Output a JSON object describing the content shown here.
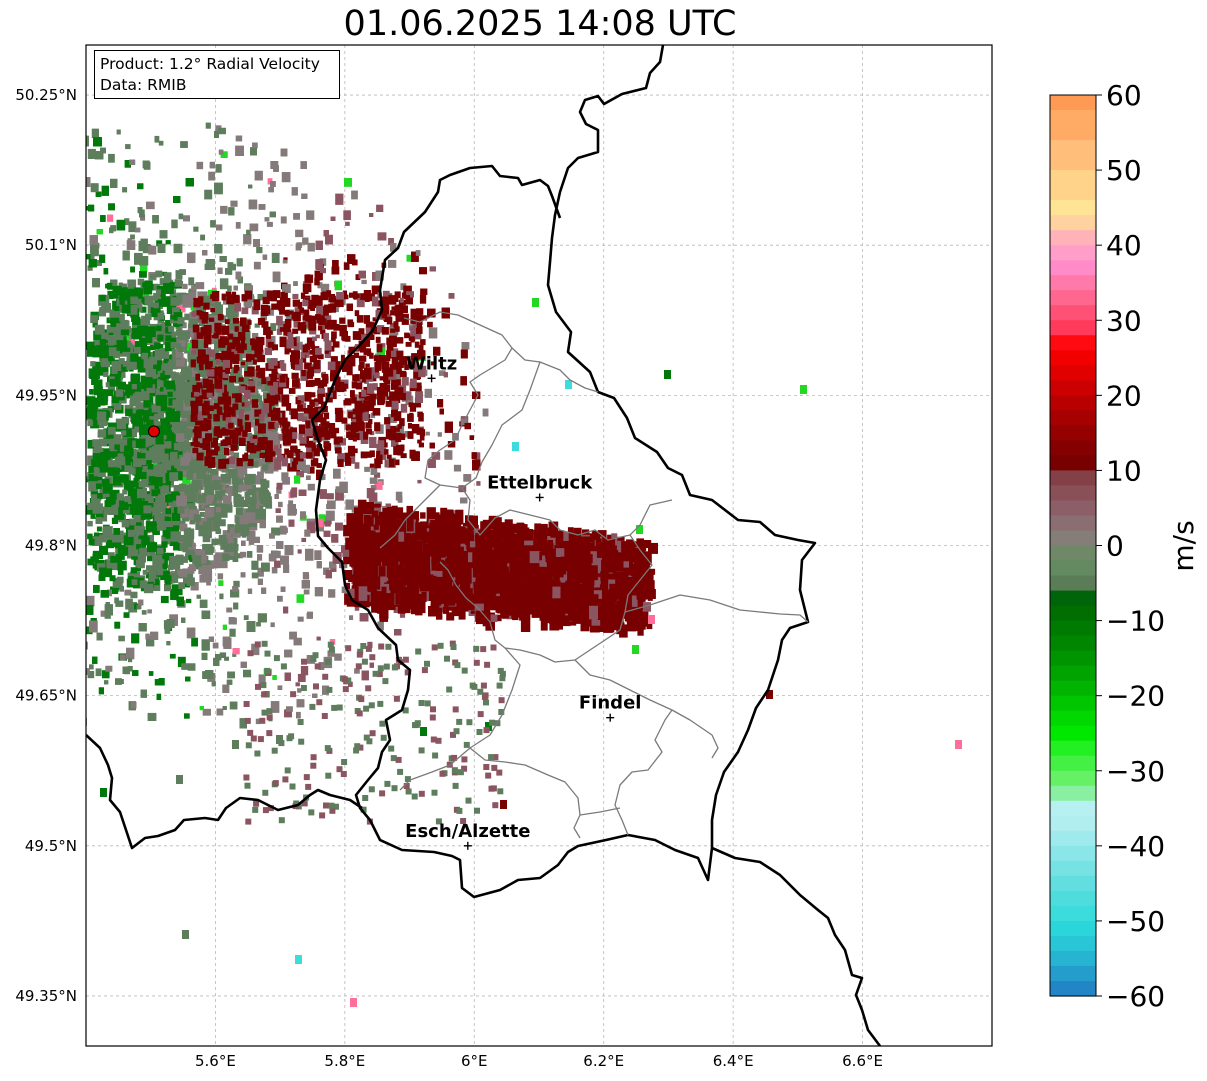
{
  "title": "01.06.2025 14:08 UTC",
  "info_box": {
    "product": "Product: 1.2° Radial Velocity",
    "data": "Data: RMIB"
  },
  "axes": {
    "lat_ticks": [
      {
        "value": 50.25,
        "label": "50.25°N"
      },
      {
        "value": 50.1,
        "label": "50.1°N"
      },
      {
        "value": 49.95,
        "label": "49.95°N"
      },
      {
        "value": 49.8,
        "label": "49.8°N"
      },
      {
        "value": 49.65,
        "label": "49.65°N"
      },
      {
        "value": 49.5,
        "label": "49.5°N"
      },
      {
        "value": 49.35,
        "label": "49.35°N"
      }
    ],
    "lon_ticks": [
      {
        "value": 5.6,
        "label": "5.6°E"
      },
      {
        "value": 5.8,
        "label": "5.8°E"
      },
      {
        "value": 6.0,
        "label": "6°E"
      },
      {
        "value": 6.2,
        "label": "6.2°E"
      },
      {
        "value": 6.4,
        "label": "6.4°E"
      },
      {
        "value": 6.6,
        "label": "6.6°E"
      }
    ],
    "lon_range": [
      5.4,
      6.8
    ],
    "lat_range": [
      49.3,
      50.3
    ],
    "grid": true
  },
  "radar_site": {
    "lon": 5.505,
    "lat": 49.914,
    "color": "#e00000"
  },
  "cities": [
    {
      "name": "Wiltz",
      "lon": 5.934,
      "lat": 49.967
    },
    {
      "name": "Ettelbruck",
      "lon": 6.101,
      "lat": 49.848
    },
    {
      "name": "Findel",
      "lon": 6.21,
      "lat": 49.628
    },
    {
      "name": "Esch/Alzette",
      "lon": 5.99,
      "lat": 49.5
    }
  ],
  "colorbar": {
    "label": "m/s",
    "min": -60,
    "max": 60,
    "ticks": [
      {
        "value": 60,
        "label": "60"
      },
      {
        "value": 50,
        "label": "50"
      },
      {
        "value": 40,
        "label": "40"
      },
      {
        "value": 30,
        "label": "30"
      },
      {
        "value": 20,
        "label": "20"
      },
      {
        "value": 10,
        "label": "10"
      },
      {
        "value": 0,
        "label": "0"
      },
      {
        "value": -10,
        "label": "−10"
      },
      {
        "value": -20,
        "label": "−20"
      },
      {
        "value": -30,
        "label": "−30"
      },
      {
        "value": -40,
        "label": "−40"
      },
      {
        "value": -50,
        "label": "−50"
      },
      {
        "value": -60,
        "label": "−60"
      }
    ],
    "stops": [
      {
        "from": 58,
        "to": 60,
        "color": "#ff9a55"
      },
      {
        "from": 54,
        "to": 58,
        "color": "#ffab66"
      },
      {
        "from": 50,
        "to": 54,
        "color": "#ffbf7a"
      },
      {
        "from": 46,
        "to": 50,
        "color": "#ffd38a"
      },
      {
        "from": 44,
        "to": 46,
        "color": "#ffe495"
      },
      {
        "from": 42,
        "to": 44,
        "color": "#ffd2a0"
      },
      {
        "from": 40,
        "to": 42,
        "color": "#ffb3b8"
      },
      {
        "from": 38,
        "to": 40,
        "color": "#ff9ec8"
      },
      {
        "from": 36,
        "to": 38,
        "color": "#ff8cc8"
      },
      {
        "from": 34,
        "to": 36,
        "color": "#ff7aa8"
      },
      {
        "from": 32,
        "to": 34,
        "color": "#ff6690"
      },
      {
        "from": 30,
        "to": 32,
        "color": "#ff5075"
      },
      {
        "from": 28,
        "to": 30,
        "color": "#ff3a5a"
      },
      {
        "from": 26,
        "to": 28,
        "color": "#ff0a10"
      },
      {
        "from": 24,
        "to": 26,
        "color": "#f20000"
      },
      {
        "from": 22,
        "to": 24,
        "color": "#e00000"
      },
      {
        "from": 20,
        "to": 22,
        "color": "#cc0000"
      },
      {
        "from": 18,
        "to": 20,
        "color": "#b80000"
      },
      {
        "from": 16,
        "to": 18,
        "color": "#a60000"
      },
      {
        "from": 14,
        "to": 16,
        "color": "#950000"
      },
      {
        "from": 12,
        "to": 14,
        "color": "#850000"
      },
      {
        "from": 10,
        "to": 12,
        "color": "#780000"
      },
      {
        "from": 8,
        "to": 10,
        "color": "#844047"
      },
      {
        "from": 6,
        "to": 8,
        "color": "#8a5058"
      },
      {
        "from": 4,
        "to": 6,
        "color": "#8c5f68"
      },
      {
        "from": 2,
        "to": 4,
        "color": "#8a6e72"
      },
      {
        "from": 0,
        "to": 2,
        "color": "#857d78"
      },
      {
        "from": -2,
        "to": 0,
        "color": "#6f8868"
      },
      {
        "from": -4,
        "to": -2,
        "color": "#648a62"
      },
      {
        "from": -6,
        "to": -4,
        "color": "#5a7d58"
      },
      {
        "from": -8,
        "to": -6,
        "color": "#00640a"
      },
      {
        "from": -10,
        "to": -8,
        "color": "#006e00"
      },
      {
        "from": -12,
        "to": -10,
        "color": "#007a00"
      },
      {
        "from": -14,
        "to": -12,
        "color": "#008600"
      },
      {
        "from": -16,
        "to": -14,
        "color": "#009400"
      },
      {
        "from": -18,
        "to": -16,
        "color": "#00a300"
      },
      {
        "from": -20,
        "to": -18,
        "color": "#00b400"
      },
      {
        "from": -22,
        "to": -20,
        "color": "#00c600"
      },
      {
        "from": -24,
        "to": -22,
        "color": "#00d800"
      },
      {
        "from": -26,
        "to": -24,
        "color": "#00e800"
      },
      {
        "from": -28,
        "to": -26,
        "color": "#22f022"
      },
      {
        "from": -30,
        "to": -28,
        "color": "#44f044"
      },
      {
        "from": -32,
        "to": -30,
        "color": "#66f066"
      },
      {
        "from": -34,
        "to": -32,
        "color": "#88f0a0"
      },
      {
        "from": -36,
        "to": -34,
        "color": "#b6f0f0"
      },
      {
        "from": -38,
        "to": -36,
        "color": "#b0eef0"
      },
      {
        "from": -40,
        "to": -38,
        "color": "#9eeaec"
      },
      {
        "from": -42,
        "to": -40,
        "color": "#8ae6e8"
      },
      {
        "from": -44,
        "to": -42,
        "color": "#76e2e4"
      },
      {
        "from": -46,
        "to": -44,
        "color": "#62dee0"
      },
      {
        "from": -48,
        "to": -46,
        "color": "#4edcdc"
      },
      {
        "from": -50,
        "to": -48,
        "color": "#3cdcdc"
      },
      {
        "from": -52,
        "to": -50,
        "color": "#2ad6da"
      },
      {
        "from": -54,
        "to": -52,
        "color": "#28c6d6"
      },
      {
        "from": -56,
        "to": -54,
        "color": "#26b4d2"
      },
      {
        "from": -58,
        "to": -56,
        "color": "#249ccc"
      },
      {
        "from": -60,
        "to": -58,
        "color": "#2286c6"
      }
    ]
  },
  "echo_colors": {
    "outbound_strong": "#780000",
    "outbound_weak": "#8a5560",
    "near_zero": "#857a7a",
    "inbound_weak": "#5e7d5c",
    "inbound": "#00780a",
    "aliased_pink": "#ff6f9a",
    "aliased_green": "#22d822",
    "aliased_cyan": "#3cdcdc"
  }
}
